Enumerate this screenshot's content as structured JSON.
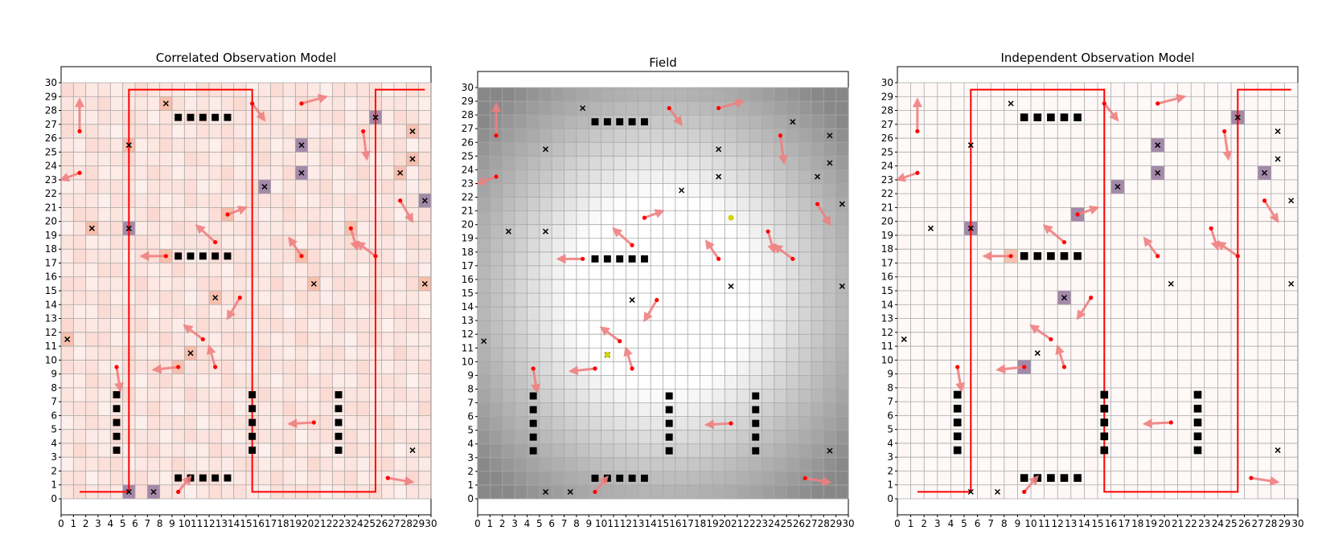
{
  "chart_data": [
    {
      "type": "heatmap",
      "title": "Correlated Observation Model",
      "xlim": [
        0,
        30
      ],
      "ylim": [
        0,
        30
      ],
      "grid": true,
      "shading": "correlated",
      "field_colors": {
        "base": "#fbe4da",
        "cell": "#f6b8a4",
        "target": "#9a83a8",
        "agent": "#ff0000",
        "wall": "#ff0000",
        "arrow": "#f08080",
        "obstacle": "#000000"
      },
      "hot_cells": [
        [
          8.5,
          28.5
        ],
        [
          5.5,
          25.5
        ],
        [
          19.5,
          25.5
        ],
        [
          19.5,
          23.5
        ],
        [
          16.5,
          22.5
        ],
        [
          12.5,
          14.5
        ],
        [
          10.5,
          10.5
        ],
        [
          9.5,
          9.5
        ],
        [
          2.5,
          19.5
        ],
        [
          5.5,
          19.5
        ],
        [
          8.5,
          17.5
        ],
        [
          13.5,
          20.5
        ],
        [
          19.5,
          17.5
        ],
        [
          20.5,
          15.5
        ],
        [
          25.5,
          27.5
        ],
        [
          28.5,
          26.5
        ],
        [
          28.5,
          24.5
        ],
        [
          27.5,
          23.5
        ],
        [
          29.5,
          21.5
        ],
        [
          29.5,
          15.5
        ],
        [
          23.5,
          19.5
        ],
        [
          0.5,
          11.5
        ],
        [
          5.5,
          0.5
        ],
        [
          7.5,
          0.5
        ]
      ],
      "target_cells": [
        [
          25.5,
          27.5
        ],
        [
          19.5,
          25.5
        ],
        [
          19.5,
          23.5
        ],
        [
          16.5,
          22.5
        ],
        [
          29.5,
          21.5
        ],
        [
          5.5,
          19.5
        ],
        [
          5.5,
          0.5
        ],
        [
          7.5,
          0.5
        ]
      ]
    },
    {
      "type": "heatmap",
      "title": "Field",
      "xlim": [
        0,
        30
      ],
      "ylim": [
        0,
        30
      ],
      "grid": true,
      "shading": "field",
      "field_colors": {
        "base": "#ffffff",
        "edge": "#8a8a8a",
        "agent": "#ff0000",
        "arrow": "#f08080",
        "obstacle": "#000000",
        "marker": "#d4d400"
      },
      "yellow_markers": [
        [
          20.5,
          20.5
        ],
        [
          10.5,
          10.5
        ]
      ]
    },
    {
      "type": "heatmap",
      "title": "Independent Observation Model",
      "xlim": [
        0,
        30
      ],
      "ylim": [
        0,
        30
      ],
      "grid": true,
      "shading": "independent",
      "field_colors": {
        "base": "#fff4ef",
        "cell": "#f6b8a4",
        "target": "#9a83a8",
        "agent": "#ff0000",
        "wall": "#ff0000",
        "arrow": "#f08080",
        "obstacle": "#000000"
      },
      "hot_cells": [
        [
          25.5,
          27.5
        ],
        [
          19.5,
          25.5
        ],
        [
          19.5,
          23.5
        ],
        [
          16.5,
          22.5
        ],
        [
          27.5,
          23.5
        ],
        [
          13.5,
          20.5
        ],
        [
          5.5,
          19.5
        ],
        [
          8.5,
          17.5
        ],
        [
          12.5,
          14.5
        ],
        [
          9.5,
          9.5
        ]
      ],
      "target_cells": [
        [
          25.5,
          27.5
        ],
        [
          19.5,
          25.5
        ],
        [
          19.5,
          23.5
        ],
        [
          16.5,
          22.5
        ],
        [
          27.5,
          23.5
        ],
        [
          13.5,
          20.5
        ],
        [
          5.5,
          19.5
        ],
        [
          12.5,
          14.5
        ],
        [
          9.5,
          9.5
        ]
      ]
    }
  ],
  "shared": {
    "ticks": [
      "0",
      "1",
      "2",
      "3",
      "4",
      "5",
      "6",
      "7",
      "8",
      "9",
      "10",
      "11",
      "12",
      "13",
      "14",
      "15",
      "16",
      "17",
      "18",
      "19",
      "20",
      "21",
      "22",
      "23",
      "24",
      "25",
      "26",
      "27",
      "28",
      "29",
      "30"
    ],
    "targets": [
      [
        8.5,
        28.5
      ],
      [
        5.5,
        25.5
      ],
      [
        19.5,
        25.5
      ],
      [
        19.5,
        23.5
      ],
      [
        16.5,
        22.5
      ],
      [
        2.5,
        19.5
      ],
      [
        5.5,
        19.5
      ],
      [
        12.5,
        14.5
      ],
      [
        20.5,
        15.5
      ],
      [
        10.5,
        10.5
      ],
      [
        0.5,
        11.5
      ],
      [
        25.5,
        27.5
      ],
      [
        28.5,
        26.5
      ],
      [
        28.5,
        24.5
      ],
      [
        27.5,
        23.5
      ],
      [
        29.5,
        21.5
      ],
      [
        29.5,
        15.5
      ],
      [
        28.5,
        3.5
      ],
      [
        5.5,
        0.5
      ],
      [
        7.5,
        0.5
      ]
    ],
    "obstacles": [
      [
        9.5,
        27.5
      ],
      [
        10.5,
        27.5
      ],
      [
        11.5,
        27.5
      ],
      [
        12.5,
        27.5
      ],
      [
        13.5,
        27.5
      ],
      [
        9.5,
        17.5
      ],
      [
        10.5,
        17.5
      ],
      [
        11.5,
        17.5
      ],
      [
        12.5,
        17.5
      ],
      [
        13.5,
        17.5
      ],
      [
        9.5,
        1.5
      ],
      [
        10.5,
        1.5
      ],
      [
        11.5,
        1.5
      ],
      [
        12.5,
        1.5
      ],
      [
        13.5,
        1.5
      ],
      [
        4.5,
        7.5
      ],
      [
        4.5,
        6.5
      ],
      [
        4.5,
        5.5
      ],
      [
        4.5,
        4.5
      ],
      [
        4.5,
        3.5
      ],
      [
        15.5,
        7.5
      ],
      [
        15.5,
        6.5
      ],
      [
        15.5,
        5.5
      ],
      [
        15.5,
        4.5
      ],
      [
        15.5,
        3.5
      ],
      [
        22.5,
        7.5
      ],
      [
        22.5,
        6.5
      ],
      [
        22.5,
        5.5
      ],
      [
        22.5,
        4.5
      ],
      [
        22.5,
        3.5
      ]
    ],
    "agents": [
      [
        1.5,
        26.5,
        1.5,
        28.8
      ],
      [
        1.5,
        23.5,
        0,
        23
      ],
      [
        8.5,
        17.5,
        6.5,
        17.5
      ],
      [
        12.5,
        18.5,
        11,
        19.7
      ],
      [
        13.5,
        20.5,
        15,
        21
      ],
      [
        14.5,
        14.5,
        13.5,
        13
      ],
      [
        11.5,
        11.5,
        10,
        12.5
      ],
      [
        12.5,
        9.5,
        12,
        11
      ],
      [
        9.5,
        9.5,
        7.5,
        9.3
      ],
      [
        9.5,
        0.5,
        10.5,
        1.6
      ],
      [
        4.5,
        9.5,
        4.8,
        7.8
      ],
      [
        15.5,
        28.5,
        16.5,
        27.3
      ],
      [
        19.5,
        28.5,
        21.5,
        29
      ],
      [
        24.5,
        26.5,
        24.8,
        24.5
      ],
      [
        27.5,
        21.5,
        28.5,
        20
      ],
      [
        19.5,
        17.5,
        18.5,
        18.8
      ],
      [
        23.5,
        19.5,
        24,
        18
      ],
      [
        25.5,
        17.5,
        24,
        18.5
      ],
      [
        20.5,
        5.5,
        18.5,
        5.4
      ],
      [
        26.5,
        1.5,
        28.5,
        1.2
      ]
    ],
    "red_path": [
      [
        1.5,
        0.5
      ],
      [
        5.5,
        0.5
      ],
      [
        5.5,
        29.5
      ],
      [
        15.5,
        29.5
      ],
      [
        15.5,
        0.5
      ],
      [
        25.5,
        0.5
      ],
      [
        25.5,
        29.5
      ],
      [
        29.5,
        29.5
      ]
    ]
  }
}
